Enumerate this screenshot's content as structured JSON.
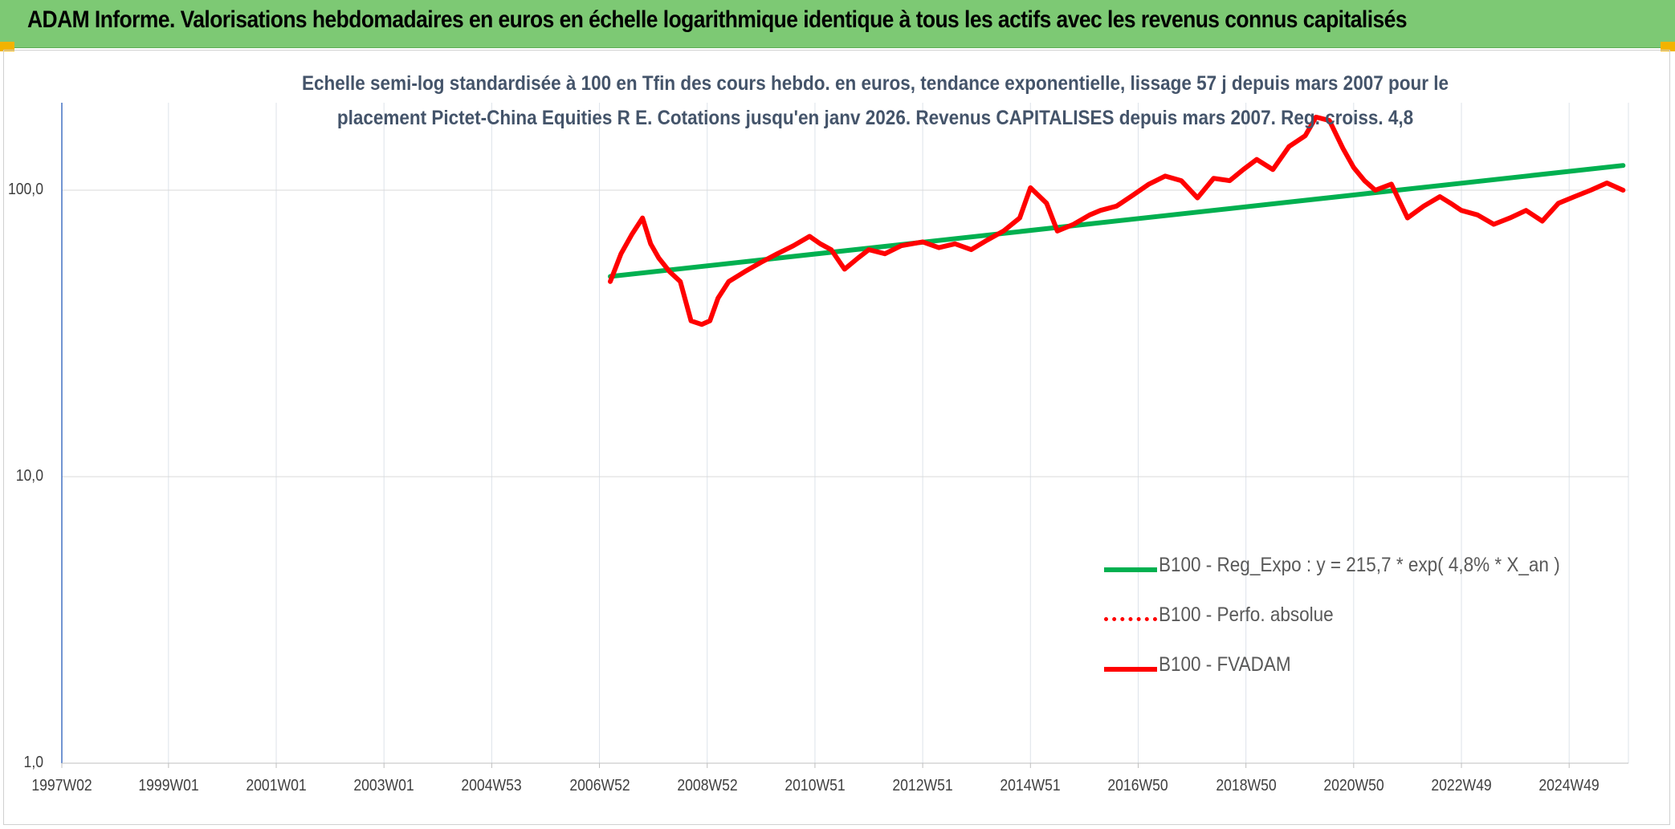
{
  "header": {
    "title": "ADAM Informe. Valorisations hebdomadaires en euros en échelle logarithmique identique à tous les actifs avec les revenus connus capitalisés"
  },
  "colors": {
    "header_bg": "#7dc974",
    "trend": "#00b050",
    "fvadam": "#ff0000",
    "perfo": "#ff0000",
    "subtitle_text": "#44546a",
    "corner_accent": "#f2b300"
  },
  "chart_data": {
    "type": "line",
    "title_line1": "Echelle semi-log standardisée à 100 en Tfin des cours hebdo. en euros, tendance exponentielle, lissage 57 j depuis mars 2007 pour le",
    "title_line2": "placement Pictet-China Equities R E. Cotations jusqu'en janv 2026. Revenus CAPITALISES depuis mars 2007. Reg. croiss. 4,8",
    "yscale": "log",
    "ylim": [
      1,
      200
    ],
    "y_ticks": [
      {
        "value": 100,
        "label": "100,0"
      },
      {
        "value": 10,
        "label": "10,0"
      },
      {
        "value": 1,
        "label": "1,0"
      }
    ],
    "xlim": [
      1997.02,
      2026.1
    ],
    "x_ticks": [
      {
        "t": 1997.02,
        "label": "1997W02"
      },
      {
        "t": 1999.0,
        "label": "1999W01"
      },
      {
        "t": 2001.0,
        "label": "2001W01"
      },
      {
        "t": 2003.0,
        "label": "2003W01"
      },
      {
        "t": 2005.0,
        "label": "2004W53"
      },
      {
        "t": 2007.0,
        "label": "2006W52"
      },
      {
        "t": 2009.0,
        "label": "2008W52"
      },
      {
        "t": 2011.0,
        "label": "2010W51"
      },
      {
        "t": 2013.0,
        "label": "2012W51"
      },
      {
        "t": 2015.0,
        "label": "2014W51"
      },
      {
        "t": 2017.0,
        "label": "2016W50"
      },
      {
        "t": 2019.0,
        "label": "2018W50"
      },
      {
        "t": 2021.0,
        "label": "2020W50"
      },
      {
        "t": 2023.0,
        "label": "2022W49"
      },
      {
        "t": 2025.0,
        "label": "2024W49"
      }
    ],
    "grid": true,
    "legend_position": "bottom-right",
    "series": [
      {
        "name": "B100 - Reg_Expo : y = 215,7 * exp( 4,8% *  X_an )",
        "style": "solid-thick",
        "color": "#00b050",
        "x": [
          2007.2,
          2026.0
        ],
        "y": [
          50,
          122
        ]
      },
      {
        "name": "B100 - Perfo. absolue",
        "style": "dotted",
        "color": "#ff0000",
        "x": [],
        "y": []
      },
      {
        "name": "B100 - FVADAM",
        "style": "solid-thick",
        "color": "#ff0000",
        "x": [
          2007.2,
          2007.4,
          2007.6,
          2007.8,
          2007.95,
          2008.1,
          2008.3,
          2008.5,
          2008.7,
          2008.9,
          2009.05,
          2009.2,
          2009.4,
          2009.7,
          2010.0,
          2010.3,
          2010.6,
          2010.9,
          2011.1,
          2011.3,
          2011.55,
          2011.8,
          2012.0,
          2012.3,
          2012.6,
          2013.0,
          2013.3,
          2013.6,
          2013.9,
          2014.2,
          2014.5,
          2014.8,
          2015.0,
          2015.3,
          2015.5,
          2015.8,
          2016.1,
          2016.3,
          2016.6,
          2016.9,
          2017.2,
          2017.5,
          2017.8,
          2018.1,
          2018.4,
          2018.7,
          2018.95,
          2019.2,
          2019.5,
          2019.8,
          2020.1,
          2020.3,
          2020.55,
          2020.8,
          2021.0,
          2021.2,
          2021.4,
          2021.7,
          2022.0,
          2022.3,
          2022.6,
          2022.8,
          2023.0,
          2023.3,
          2023.6,
          2023.9,
          2024.2,
          2024.5,
          2024.8,
          2025.1,
          2025.4,
          2025.7,
          2026.0
        ],
        "y": [
          48,
          60,
          70,
          80,
          65,
          58,
          52,
          48,
          35,
          34,
          35,
          42,
          48,
          52,
          56,
          60,
          64,
          69,
          65,
          62,
          53,
          58,
          62,
          60,
          64,
          66,
          63,
          65,
          62,
          67,
          72,
          80,
          102,
          90,
          72,
          76,
          82,
          85,
          88,
          96,
          105,
          112,
          108,
          94,
          110,
          108,
          118,
          128,
          118,
          142,
          155,
          180,
          175,
          140,
          120,
          108,
          100,
          105,
          80,
          88,
          95,
          90,
          85,
          82,
          76,
          80,
          85,
          78,
          90,
          95,
          100,
          106,
          100
        ]
      }
    ]
  }
}
